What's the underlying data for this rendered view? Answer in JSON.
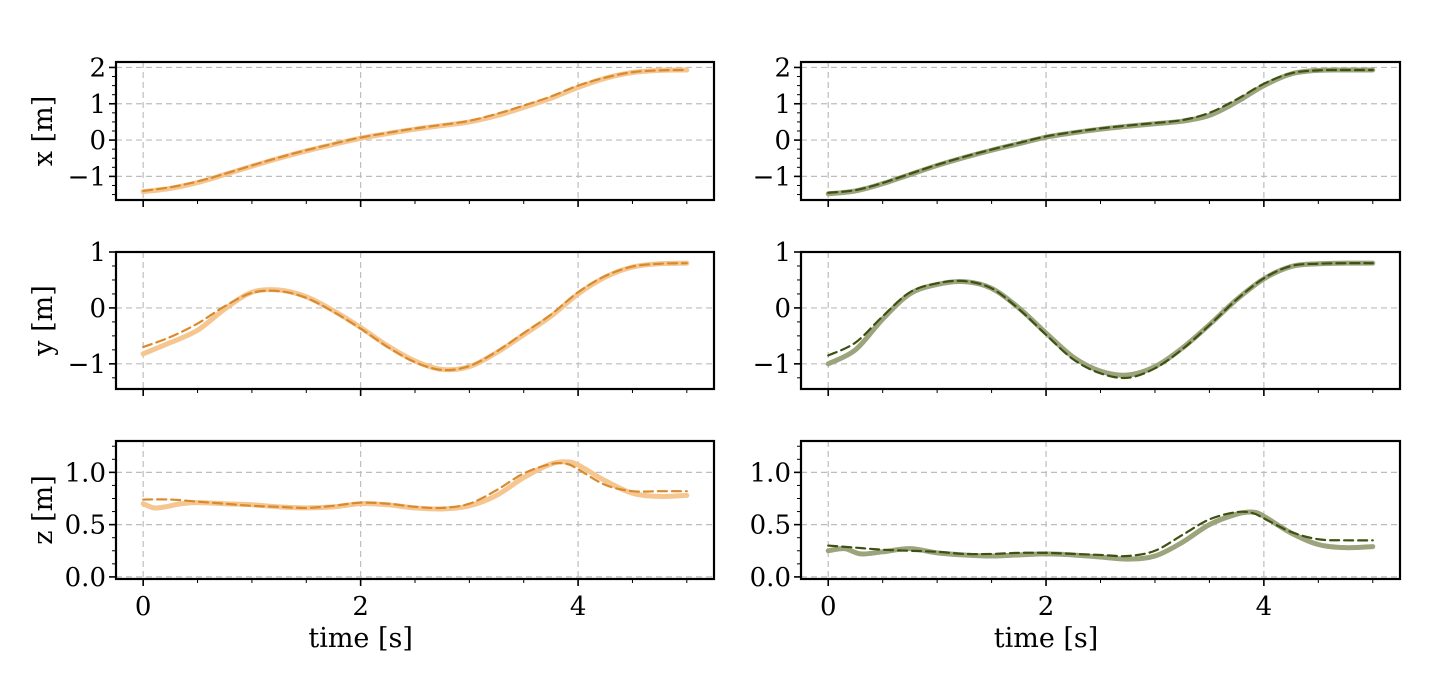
{
  "chart_data": [
    {
      "type": "line",
      "row": 0,
      "col": 0,
      "xlabel": "",
      "ylabel": "x [m]",
      "xlim": [
        -0.25,
        5.25
      ],
      "ylim": [
        -1.65,
        2.15
      ],
      "xticks": [
        0,
        2,
        4
      ],
      "yticks": [
        -1,
        0,
        1,
        2
      ],
      "xtick_labels": [
        "",
        "",
        ""
      ],
      "ytick_labels": [
        "−1",
        "0",
        "1",
        "2"
      ],
      "grid": true,
      "colors": {
        "actual": "#f5c690",
        "reference": "#d98a2e"
      },
      "series": [
        {
          "role": "actual",
          "style": "solid-thick",
          "x": [
            0,
            0.25,
            0.5,
            0.75,
            1.0,
            1.25,
            1.5,
            1.75,
            2.0,
            2.25,
            2.5,
            2.75,
            3.0,
            3.25,
            3.5,
            3.75,
            4.0,
            4.25,
            4.5,
            4.75,
            5.0
          ],
          "y": [
            -1.42,
            -1.33,
            -1.17,
            -0.95,
            -0.72,
            -0.5,
            -0.3,
            -0.12,
            0.05,
            0.18,
            0.3,
            0.4,
            0.5,
            0.67,
            0.9,
            1.15,
            1.45,
            1.7,
            1.86,
            1.92,
            1.93
          ]
        },
        {
          "role": "reference",
          "style": "dashed",
          "x": [
            0,
            0.25,
            0.5,
            0.75,
            1.0,
            1.25,
            1.5,
            1.75,
            2.0,
            2.25,
            2.5,
            2.75,
            3.0,
            3.25,
            3.5,
            3.75,
            4.0,
            4.25,
            4.5,
            4.75,
            5.0
          ],
          "y": [
            -1.4,
            -1.3,
            -1.14,
            -0.93,
            -0.7,
            -0.48,
            -0.28,
            -0.1,
            0.07,
            0.2,
            0.32,
            0.42,
            0.53,
            0.72,
            0.95,
            1.2,
            1.5,
            1.72,
            1.87,
            1.92,
            1.93
          ]
        }
      ]
    },
    {
      "type": "line",
      "row": 0,
      "col": 1,
      "xlabel": "",
      "ylabel": "",
      "xlim": [
        -0.25,
        5.25
      ],
      "ylim": [
        -1.65,
        2.15
      ],
      "xticks": [
        0,
        2,
        4
      ],
      "yticks": [
        -1,
        0,
        1,
        2
      ],
      "xtick_labels": [
        "",
        "",
        ""
      ],
      "ytick_labels": [
        "−1",
        "0",
        "1",
        "2"
      ],
      "grid": true,
      "colors": {
        "actual": "#9ca47e",
        "reference": "#3d5210"
      },
      "series": [
        {
          "role": "actual",
          "style": "solid-thick",
          "x": [
            0,
            0.25,
            0.5,
            0.75,
            1.0,
            1.25,
            1.5,
            1.75,
            2.0,
            2.25,
            2.5,
            2.75,
            3.0,
            3.25,
            3.5,
            3.75,
            4.0,
            4.25,
            4.5,
            4.75,
            5.0
          ],
          "y": [
            -1.48,
            -1.4,
            -1.2,
            -0.95,
            -0.7,
            -0.48,
            -0.28,
            -0.1,
            0.08,
            0.2,
            0.3,
            0.38,
            0.45,
            0.52,
            0.68,
            1.05,
            1.5,
            1.82,
            1.92,
            1.93,
            1.93
          ]
        },
        {
          "role": "reference",
          "style": "dashed",
          "x": [
            0,
            0.25,
            0.5,
            0.75,
            1.0,
            1.25,
            1.5,
            1.75,
            2.0,
            2.25,
            2.5,
            2.75,
            3.0,
            3.25,
            3.5,
            3.75,
            4.0,
            4.25,
            4.5,
            4.75,
            5.0
          ],
          "y": [
            -1.45,
            -1.38,
            -1.18,
            -0.93,
            -0.68,
            -0.46,
            -0.26,
            -0.08,
            0.1,
            0.22,
            0.32,
            0.4,
            0.47,
            0.55,
            0.75,
            1.12,
            1.55,
            1.84,
            1.92,
            1.93,
            1.93
          ]
        }
      ]
    },
    {
      "type": "line",
      "row": 1,
      "col": 0,
      "xlabel": "",
      "ylabel": "y [m]",
      "xlim": [
        -0.25,
        5.25
      ],
      "ylim": [
        -1.45,
        1.0
      ],
      "xticks": [
        0,
        2,
        4
      ],
      "yticks": [
        -1,
        0,
        1
      ],
      "xtick_labels": [
        "",
        "",
        ""
      ],
      "ytick_labels": [
        "−1",
        "0",
        "1"
      ],
      "grid": true,
      "colors": {
        "actual": "#f5c690",
        "reference": "#d98a2e"
      },
      "series": [
        {
          "role": "actual",
          "style": "solid-thick",
          "x": [
            0,
            0.25,
            0.5,
            0.75,
            1.0,
            1.25,
            1.5,
            1.75,
            2.0,
            2.25,
            2.5,
            2.75,
            3.0,
            3.25,
            3.5,
            3.75,
            4.0,
            4.25,
            4.5,
            4.75,
            5.0
          ],
          "y": [
            -0.82,
            -0.62,
            -0.4,
            -0.02,
            0.28,
            0.32,
            0.2,
            -0.05,
            -0.35,
            -0.68,
            -0.95,
            -1.1,
            -1.05,
            -0.8,
            -0.48,
            -0.15,
            0.25,
            0.55,
            0.73,
            0.79,
            0.8
          ]
        },
        {
          "role": "reference",
          "style": "dashed",
          "x": [
            0,
            0.25,
            0.5,
            0.75,
            1.0,
            1.25,
            1.5,
            1.75,
            2.0,
            2.25,
            2.5,
            2.75,
            3.0,
            3.25,
            3.5,
            3.75,
            4.0,
            4.25,
            4.5,
            4.75,
            5.0
          ],
          "y": [
            -0.7,
            -0.52,
            -0.28,
            0.03,
            0.27,
            0.3,
            0.18,
            -0.07,
            -0.37,
            -0.7,
            -0.97,
            -1.11,
            -1.04,
            -0.78,
            -0.45,
            -0.12,
            0.28,
            0.57,
            0.74,
            0.79,
            0.8
          ]
        }
      ]
    },
    {
      "type": "line",
      "row": 1,
      "col": 1,
      "xlabel": "",
      "ylabel": "",
      "xlim": [
        -0.25,
        5.25
      ],
      "ylim": [
        -1.45,
        1.0
      ],
      "xticks": [
        0,
        2,
        4
      ],
      "yticks": [
        -1,
        0,
        1
      ],
      "xtick_labels": [
        "",
        "",
        ""
      ],
      "ytick_labels": [
        "−1",
        "0",
        "1"
      ],
      "grid": true,
      "colors": {
        "actual": "#9ca47e",
        "reference": "#3d5210"
      },
      "series": [
        {
          "role": "actual",
          "style": "solid-thick",
          "x": [
            0,
            0.25,
            0.5,
            0.75,
            1.0,
            1.25,
            1.5,
            1.75,
            2.0,
            2.25,
            2.5,
            2.75,
            3.0,
            3.25,
            3.5,
            3.75,
            4.0,
            4.25,
            4.5,
            4.75,
            5.0
          ],
          "y": [
            -1.0,
            -0.75,
            -0.2,
            0.25,
            0.42,
            0.47,
            0.35,
            0.0,
            -0.45,
            -0.88,
            -1.13,
            -1.2,
            -1.05,
            -0.72,
            -0.3,
            0.15,
            0.52,
            0.74,
            0.79,
            0.8,
            0.8
          ]
        },
        {
          "role": "reference",
          "style": "dashed",
          "x": [
            0,
            0.25,
            0.5,
            0.75,
            1.0,
            1.25,
            1.5,
            1.75,
            2.0,
            2.25,
            2.5,
            2.75,
            3.0,
            3.25,
            3.5,
            3.75,
            4.0,
            4.25,
            4.5,
            4.75,
            5.0
          ],
          "y": [
            -0.85,
            -0.62,
            -0.15,
            0.28,
            0.44,
            0.48,
            0.35,
            -0.02,
            -0.48,
            -0.92,
            -1.17,
            -1.25,
            -1.08,
            -0.74,
            -0.31,
            0.15,
            0.53,
            0.75,
            0.79,
            0.8,
            0.8
          ]
        }
      ]
    },
    {
      "type": "line",
      "row": 2,
      "col": 0,
      "xlabel": "time [s]",
      "ylabel": "z [m]",
      "xlim": [
        -0.25,
        5.25
      ],
      "ylim": [
        -0.02,
        1.3
      ],
      "xticks": [
        0,
        2,
        4
      ],
      "yticks": [
        0.0,
        0.5,
        1.0
      ],
      "xtick_labels": [
        "0",
        "2",
        "4"
      ],
      "ytick_labels": [
        "0.0",
        "0.5",
        "1.0"
      ],
      "grid": true,
      "colors": {
        "actual": "#f5c690",
        "reference": "#d98a2e"
      },
      "series": [
        {
          "role": "actual",
          "style": "solid-thick",
          "x": [
            0,
            0.1,
            0.2,
            0.35,
            0.5,
            0.75,
            1.0,
            1.25,
            1.5,
            1.75,
            2.0,
            2.25,
            2.5,
            2.75,
            3.0,
            3.25,
            3.5,
            3.75,
            3.9,
            4.0,
            4.25,
            4.5,
            4.75,
            5.0
          ],
          "y": [
            0.7,
            0.66,
            0.67,
            0.7,
            0.71,
            0.7,
            0.69,
            0.67,
            0.66,
            0.67,
            0.7,
            0.69,
            0.66,
            0.65,
            0.68,
            0.78,
            0.95,
            1.08,
            1.1,
            1.07,
            0.92,
            0.8,
            0.77,
            0.78
          ]
        },
        {
          "role": "reference",
          "style": "dashed",
          "x": [
            0,
            0.25,
            0.5,
            0.75,
            1.0,
            1.25,
            1.5,
            1.75,
            2.0,
            2.25,
            2.5,
            2.75,
            3.0,
            3.25,
            3.5,
            3.75,
            3.9,
            4.0,
            4.25,
            4.5,
            4.75,
            5.0
          ],
          "y": [
            0.74,
            0.74,
            0.72,
            0.7,
            0.68,
            0.67,
            0.66,
            0.68,
            0.71,
            0.7,
            0.67,
            0.66,
            0.7,
            0.83,
            0.99,
            1.08,
            1.08,
            1.03,
            0.88,
            0.82,
            0.82,
            0.82
          ]
        }
      ]
    },
    {
      "type": "line",
      "row": 2,
      "col": 1,
      "xlabel": "time [s]",
      "ylabel": "",
      "xlim": [
        -0.25,
        5.25
      ],
      "ylim": [
        -0.02,
        1.3
      ],
      "xticks": [
        0,
        2,
        4
      ],
      "yticks": [
        0.0,
        0.5,
        1.0
      ],
      "xtick_labels": [
        "0",
        "2",
        "4"
      ],
      "ytick_labels": [
        "0.0",
        "0.5",
        "1.0"
      ],
      "grid": true,
      "colors": {
        "actual": "#9ca47e",
        "reference": "#3d5210"
      },
      "series": [
        {
          "role": "actual",
          "style": "solid-thick",
          "x": [
            0,
            0.15,
            0.3,
            0.5,
            0.75,
            1.0,
            1.25,
            1.5,
            1.75,
            2.0,
            2.25,
            2.5,
            2.75,
            3.0,
            3.25,
            3.5,
            3.75,
            3.9,
            4.0,
            4.25,
            4.5,
            4.75,
            5.0
          ],
          "y": [
            0.25,
            0.27,
            0.22,
            0.24,
            0.27,
            0.23,
            0.21,
            0.2,
            0.21,
            0.22,
            0.21,
            0.19,
            0.17,
            0.2,
            0.33,
            0.5,
            0.6,
            0.62,
            0.58,
            0.42,
            0.31,
            0.28,
            0.29
          ]
        },
        {
          "role": "reference",
          "style": "dashed",
          "x": [
            0,
            0.25,
            0.5,
            0.75,
            1.0,
            1.25,
            1.5,
            1.75,
            2.0,
            2.25,
            2.5,
            2.75,
            3.0,
            3.25,
            3.5,
            3.75,
            3.9,
            4.0,
            4.25,
            4.5,
            4.75,
            5.0
          ],
          "y": [
            0.3,
            0.28,
            0.26,
            0.25,
            0.24,
            0.22,
            0.22,
            0.23,
            0.23,
            0.22,
            0.21,
            0.2,
            0.25,
            0.4,
            0.55,
            0.62,
            0.61,
            0.56,
            0.43,
            0.36,
            0.35,
            0.35
          ]
        }
      ]
    }
  ]
}
